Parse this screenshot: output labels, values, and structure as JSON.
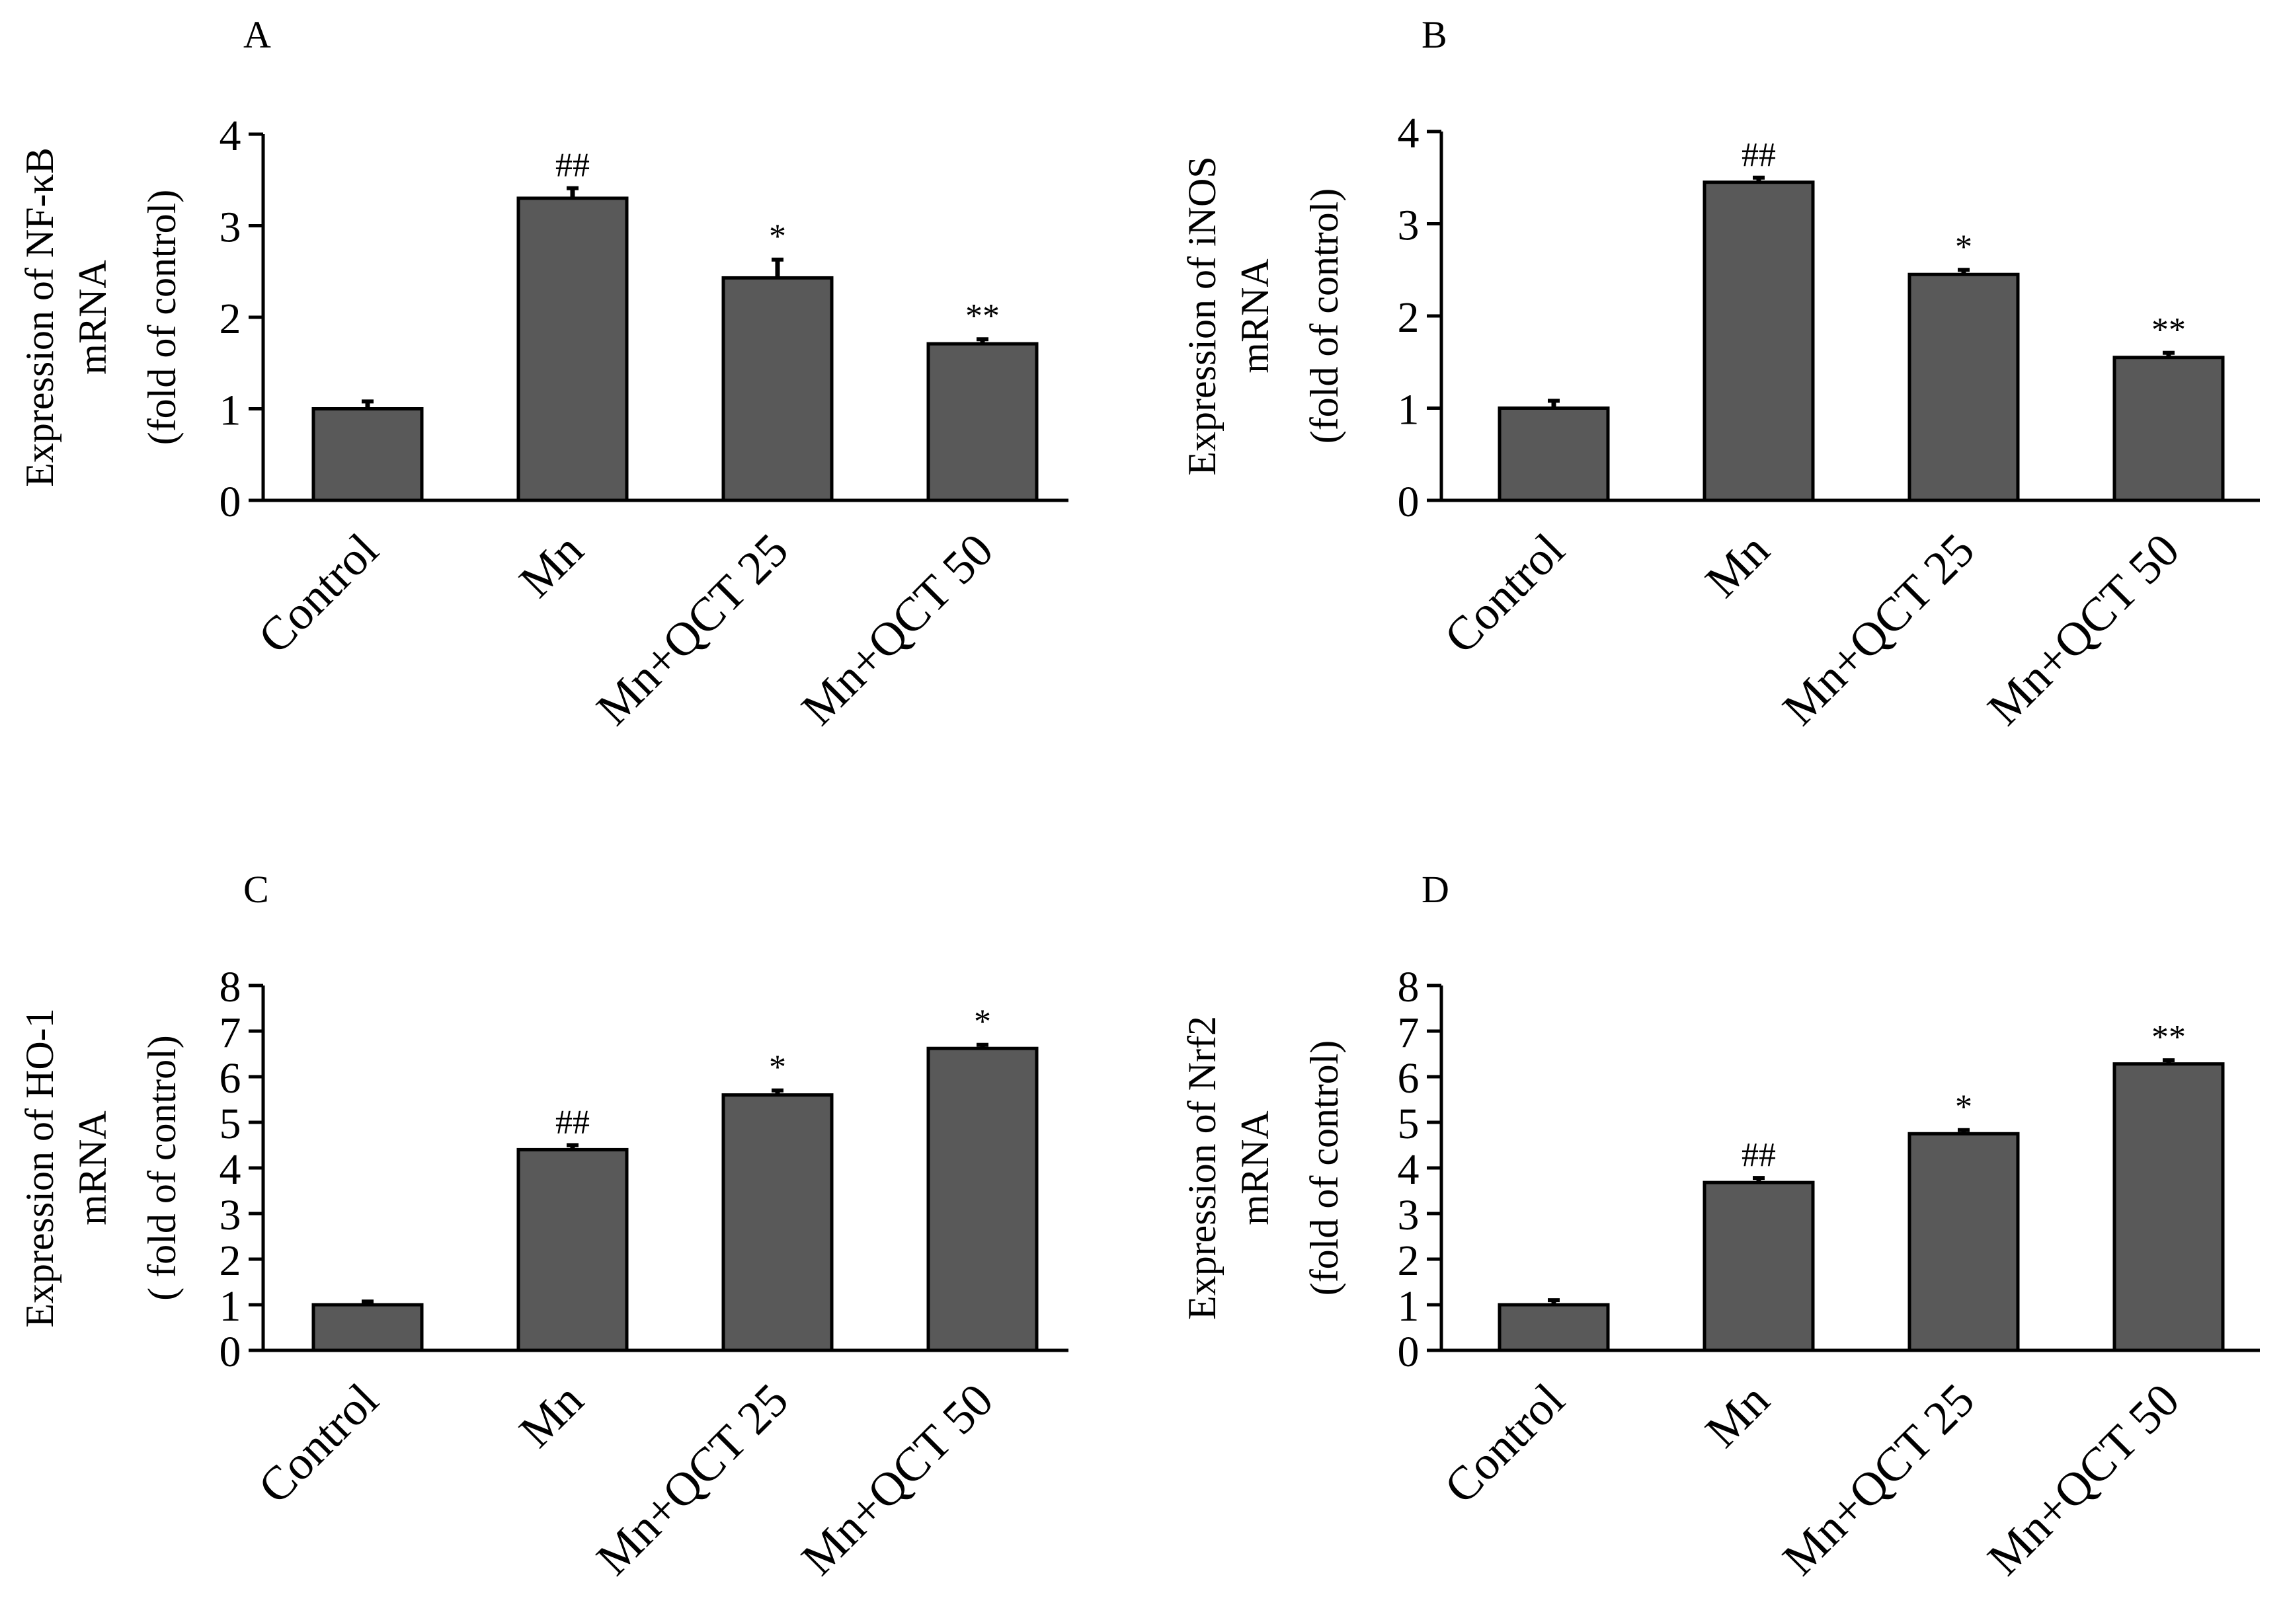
{
  "figure": {
    "bar_color": "#595959",
    "bar_edge_color": "#000000",
    "axis_color": "#000000"
  },
  "chart_data": [
    {
      "panel": "A",
      "type": "bar",
      "ylabel_lines": [
        "Expression of NF-κB",
        "mRNA",
        "(fold of control)"
      ],
      "categories": [
        "Control",
        "Mn",
        "Mn+QCT 25",
        "Mn+QCT 50"
      ],
      "values": [
        1.0,
        3.3,
        2.43,
        1.71
      ],
      "errors": [
        0.08,
        0.11,
        0.2,
        0.05
      ],
      "annotations": [
        "",
        "##",
        "*",
        "**"
      ],
      "ylim": [
        0,
        4
      ],
      "yticks": [
        0,
        1,
        2,
        3,
        4
      ]
    },
    {
      "panel": "B",
      "type": "bar",
      "ylabel_lines": [
        "Expression of iNOS",
        "mRNA",
        "(fold of control)"
      ],
      "categories": [
        "Control",
        "Mn",
        "Mn+QCT 25",
        "Mn+QCT 50"
      ],
      "values": [
        1.0,
        3.45,
        2.45,
        1.55
      ],
      "errors": [
        0.08,
        0.05,
        0.05,
        0.05
      ],
      "annotations": [
        "",
        "##",
        "*",
        "**"
      ],
      "ylim": [
        0,
        4
      ],
      "yticks": [
        0,
        1,
        2,
        3,
        4
      ]
    },
    {
      "panel": "C",
      "type": "bar",
      "ylabel_lines": [
        "Expression of HO-1",
        "mRNA",
        "( fold of control)"
      ],
      "categories": [
        "Control",
        "Mn",
        "Mn+QCT 25",
        "Mn+QCT 50"
      ],
      "values": [
        1.0,
        4.4,
        5.6,
        6.62
      ],
      "errors": [
        0.07,
        0.1,
        0.1,
        0.08
      ],
      "annotations": [
        "",
        "##",
        "*",
        "*"
      ],
      "ylim": [
        0,
        8
      ],
      "yticks": [
        0,
        1,
        2,
        3,
        4,
        5,
        6,
        7,
        8
      ]
    },
    {
      "panel": "D",
      "type": "bar",
      "ylabel_lines": [
        "Expression of Nrf2",
        "mRNA",
        "(fold of control)"
      ],
      "categories": [
        "Control",
        "Mn",
        "Mn+QCT 25",
        "Mn+QCT 50"
      ],
      "values": [
        1.0,
        3.68,
        4.75,
        6.28
      ],
      "errors": [
        0.1,
        0.1,
        0.08,
        0.08
      ],
      "annotations": [
        "",
        "##",
        "*",
        "**"
      ],
      "ylim": [
        0,
        8
      ],
      "yticks": [
        0,
        1,
        2,
        3,
        4,
        5,
        6,
        7,
        8
      ]
    }
  ]
}
